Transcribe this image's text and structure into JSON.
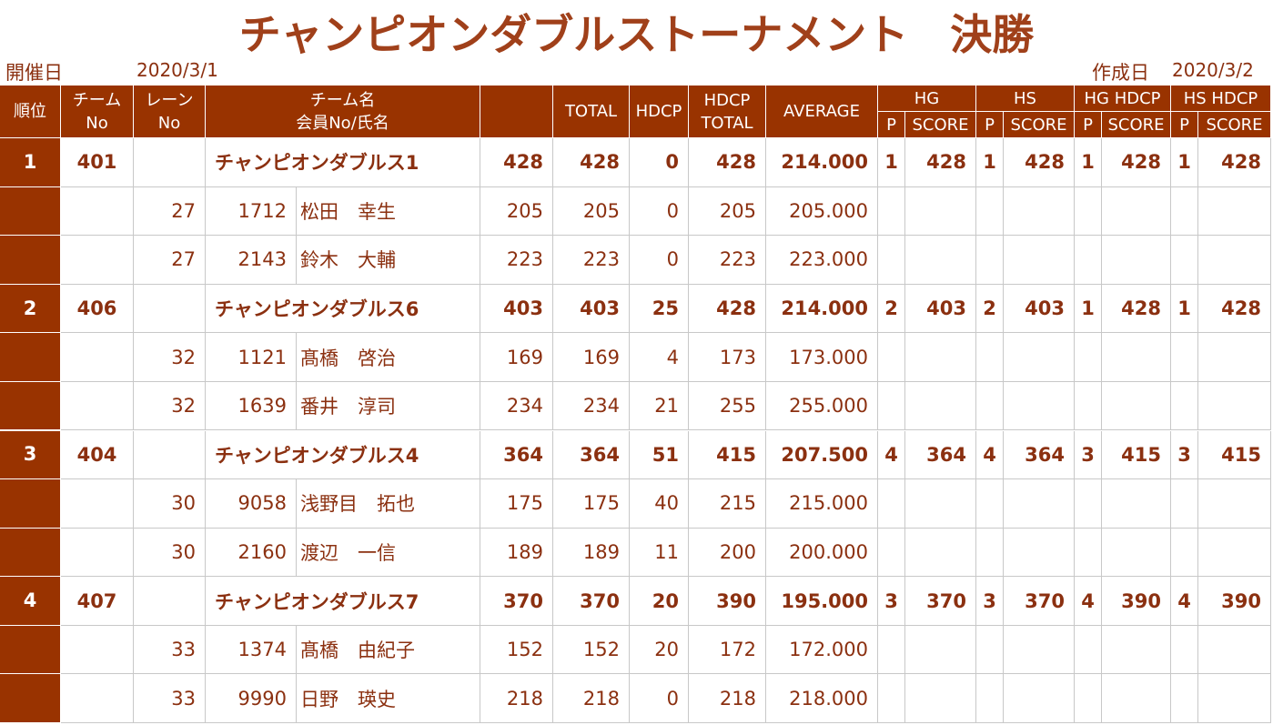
{
  "title": "チャンピオンダブルストーナメント　決勝",
  "held": {
    "label": "開催日",
    "date": "2020/3/1"
  },
  "created": {
    "label": "作成日",
    "date": "2020/3/2"
  },
  "headers": {
    "rank": "順位",
    "team_no": [
      "チーム",
      "No"
    ],
    "lane_no": [
      "レーン",
      "No"
    ],
    "team_name": [
      "チーム名",
      "会員No/氏名"
    ],
    "total": "TOTAL",
    "hdcp": "HDCP",
    "hdcp_total": [
      "HDCP",
      "TOTAL"
    ],
    "average": "AVERAGE",
    "hg": "HG",
    "hs": "HS",
    "hg_hdcp": "HG HDCP",
    "hs_hdcp": "HS HDCP",
    "p": "P",
    "score": "SCORE"
  },
  "teams": [
    {
      "rank": "1",
      "team_no": "401",
      "name": "チャンピオンダブルス1",
      "score": "428",
      "total": "428",
      "hdcp": "0",
      "hdcp_total": "428",
      "average": "214.000",
      "hg": [
        "1",
        "428"
      ],
      "hs": [
        "1",
        "428"
      ],
      "hg_hdcp": [
        "1",
        "428"
      ],
      "hs_hdcp": [
        "1",
        "428"
      ],
      "members": [
        {
          "lane": "27",
          "no": "1712",
          "name": "松田　幸生",
          "score": "205",
          "total": "205",
          "hdcp": "0",
          "hdcp_total": "205",
          "average": "205.000"
        },
        {
          "lane": "27",
          "no": "2143",
          "name": "鈴木　大輔",
          "score": "223",
          "total": "223",
          "hdcp": "0",
          "hdcp_total": "223",
          "average": "223.000"
        }
      ]
    },
    {
      "rank": "2",
      "team_no": "406",
      "name": "チャンピオンダブルス6",
      "score": "403",
      "total": "403",
      "hdcp": "25",
      "hdcp_total": "428",
      "average": "214.000",
      "hg": [
        "2",
        "403"
      ],
      "hs": [
        "2",
        "403"
      ],
      "hg_hdcp": [
        "1",
        "428"
      ],
      "hs_hdcp": [
        "1",
        "428"
      ],
      "members": [
        {
          "lane": "32",
          "no": "1121",
          "name": "髙橋　啓治",
          "score": "169",
          "total": "169",
          "hdcp": "4",
          "hdcp_total": "173",
          "average": "173.000"
        },
        {
          "lane": "32",
          "no": "1639",
          "name": "番井　淳司",
          "score": "234",
          "total": "234",
          "hdcp": "21",
          "hdcp_total": "255",
          "average": "255.000"
        }
      ]
    },
    {
      "rank": "3",
      "team_no": "404",
      "name": "チャンピオンダブルス4",
      "score": "364",
      "total": "364",
      "hdcp": "51",
      "hdcp_total": "415",
      "average": "207.500",
      "hg": [
        "4",
        "364"
      ],
      "hs": [
        "4",
        "364"
      ],
      "hg_hdcp": [
        "3",
        "415"
      ],
      "hs_hdcp": [
        "3",
        "415"
      ],
      "members": [
        {
          "lane": "30",
          "no": "9058",
          "name": "浅野目　拓也",
          "score": "175",
          "total": "175",
          "hdcp": "40",
          "hdcp_total": "215",
          "average": "215.000"
        },
        {
          "lane": "30",
          "no": "2160",
          "name": "渡辺　一信",
          "score": "189",
          "total": "189",
          "hdcp": "11",
          "hdcp_total": "200",
          "average": "200.000"
        }
      ]
    },
    {
      "rank": "4",
      "team_no": "407",
      "name": "チャンピオンダブルス7",
      "score": "370",
      "total": "370",
      "hdcp": "20",
      "hdcp_total": "390",
      "average": "195.000",
      "hg": [
        "3",
        "370"
      ],
      "hs": [
        "3",
        "370"
      ],
      "hg_hdcp": [
        "4",
        "390"
      ],
      "hs_hdcp": [
        "4",
        "390"
      ],
      "members": [
        {
          "lane": "33",
          "no": "1374",
          "name": "髙橋　由紀子",
          "score": "152",
          "total": "152",
          "hdcp": "20",
          "hdcp_total": "172",
          "average": "172.000"
        },
        {
          "lane": "33",
          "no": "9990",
          "name": "日野　瑛史",
          "score": "218",
          "total": "218",
          "hdcp": "0",
          "hdcp_total": "218",
          "average": "218.000"
        }
      ]
    }
  ]
}
